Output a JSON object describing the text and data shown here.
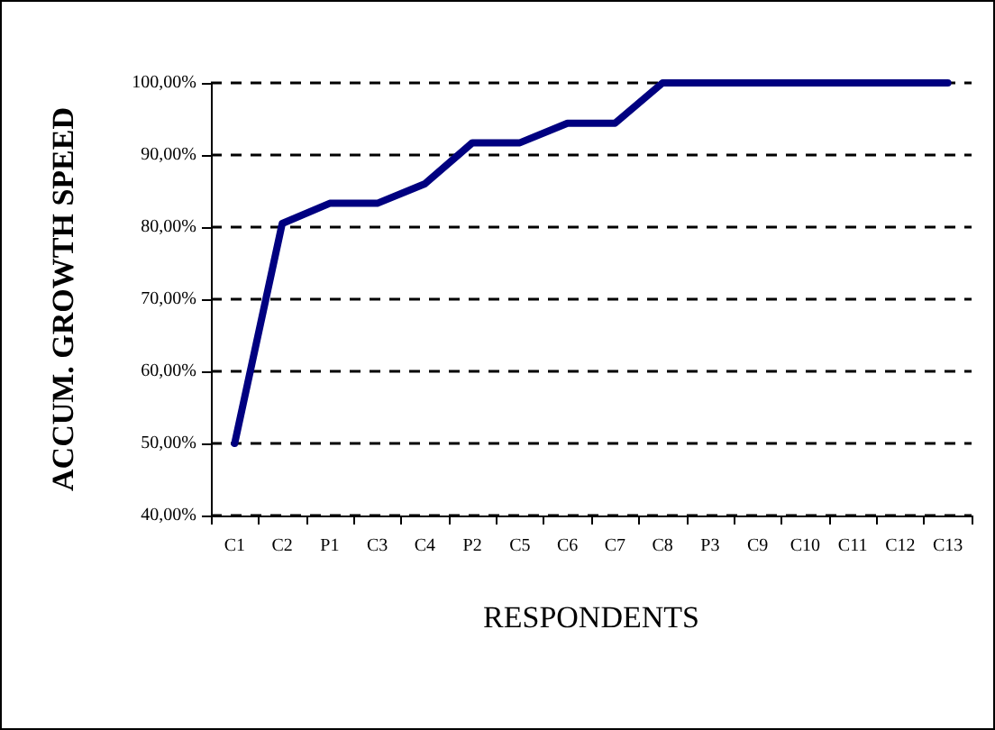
{
  "chart_data": {
    "type": "line",
    "xlabel": "RESPONDENTS",
    "ylabel": "ACCUM. GROWTH SPEED",
    "categories": [
      "C1",
      "C2",
      "P1",
      "C3",
      "C4",
      "P2",
      "C5",
      "C6",
      "C7",
      "C8",
      "P3",
      "C9",
      "C10",
      "C11",
      "C12",
      "C13"
    ],
    "series": [
      {
        "color": "#000080",
        "values": [
          50,
          80.5,
          83.3,
          83.3,
          86,
          91.7,
          91.7,
          94.4,
          94.4,
          100,
          100,
          100,
          100,
          100,
          100,
          100
        ]
      }
    ],
    "ylim": [
      40,
      100
    ],
    "yticks": [
      {
        "value": 40,
        "label": "40,00%"
      },
      {
        "value": 50,
        "label": "50,00%"
      },
      {
        "value": 60,
        "label": "60,00%"
      },
      {
        "value": 70,
        "label": "70,00%"
      },
      {
        "value": 80,
        "label": "80,00%"
      },
      {
        "value": 90,
        "label": "90,00%"
      },
      {
        "value": 100,
        "label": "100,00%"
      }
    ],
    "grid": "y",
    "marker": "none",
    "line_style": "solid"
  }
}
